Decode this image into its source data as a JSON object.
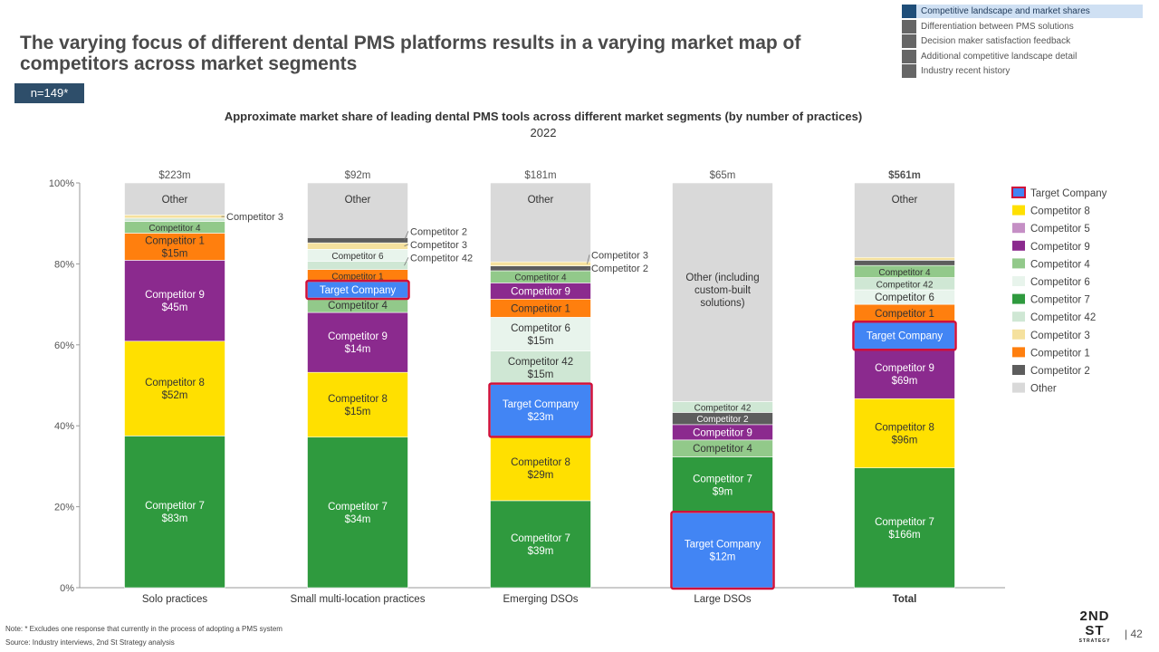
{
  "slide": {
    "title": "The varying focus of different dental PMS platforms results in a varying market map of competitors across market segments",
    "sample": "n=149*",
    "note": "Note: * Excludes one response that currently in the process of adopting a PMS system",
    "source": "Source: Industry interviews, 2nd St Strategy analysis",
    "page_number": "| 42",
    "logo_top": "2ND",
    "logo_mid": "ST",
    "logo_small": "STRATEGY"
  },
  "nav": {
    "items": [
      {
        "label": "Competitive landscape and market shares",
        "active": true
      },
      {
        "label": "Differentiation between PMS solutions",
        "active": false
      },
      {
        "label": "Decision maker satisfaction feedback",
        "active": false
      },
      {
        "label": "Additional competitive landscape detail",
        "active": false
      },
      {
        "label": "Industry recent history",
        "active": false
      }
    ]
  },
  "colors": {
    "Target Company": "#4285f4",
    "Competitor 8": "#ffe000",
    "Competitor 5": "#c58fc5",
    "Competitor 9": "#8b2a8e",
    "Competitor 4": "#92c98a",
    "Competitor 6": "#e8f4ec",
    "Competitor 7": "#2f9a3e",
    "Competitor 42": "#cfe7d4",
    "Competitor 3": "#f5e19e",
    "Competitor 1": "#ff7f0e",
    "Competitor 2": "#5d5d5d",
    "Other": "#d9d9d9",
    "Other (including custom-built solutions)": "#d9d9d9",
    "highlight": "#d0103a"
  },
  "chart_data": {
    "type": "bar",
    "stacked": true,
    "title": "Approximate  market share of leading dental PMS tools across different market segments (by number of practices)",
    "subtitle": "2022",
    "ylim": [
      0,
      100
    ],
    "yticks": [
      "0%",
      "20%",
      "40%",
      "60%",
      "80%",
      "100%"
    ],
    "grid": false,
    "legend_position": "right",
    "legend": [
      "Target Company",
      "Competitor 8",
      "Competitor 5",
      "Competitor 9",
      "Competitor 4",
      "Competitor 6",
      "Competitor 7",
      "Competitor 42",
      "Competitor 3",
      "Competitor 1",
      "Competitor 2",
      "Other"
    ],
    "categories": [
      "Solo practices",
      "Small multi-location practices",
      "Emerging DSOs",
      "Large DSOs",
      "Total"
    ],
    "totals": [
      "$223m",
      "$92m",
      "$181m",
      "$65m",
      "$561m"
    ],
    "stacks": [
      {
        "category": "Solo practices",
        "segments": [
          {
            "name": "Competitor 7",
            "value": 37.5,
            "label": "Competitor 7",
            "amount": "$83m"
          },
          {
            "name": "Competitor 8",
            "value": 23.4,
            "label": "Competitor 8",
            "amount": "$52m"
          },
          {
            "name": "Competitor 9",
            "value": 20.0,
            "label": "Competitor 9",
            "amount": "$45m"
          },
          {
            "name": "Competitor 1",
            "value": 6.7,
            "label": "Competitor 1",
            "amount": "$15m"
          },
          {
            "name": "Competitor 4",
            "value": 2.9,
            "label": "Competitor 4"
          },
          {
            "name": "Competitor 42",
            "value": 0.8
          },
          {
            "name": "Competitor 3",
            "value": 0.8,
            "callout": "Competitor 3"
          },
          {
            "name": "Other",
            "value": 7.9,
            "label": "Other"
          }
        ]
      },
      {
        "category": "Small multi-location practices",
        "segments": [
          {
            "name": "Competitor 7",
            "value": 37.2,
            "label": "Competitor 7",
            "amount": "$34m"
          },
          {
            "name": "Competitor 8",
            "value": 16.0,
            "label": "Competitor 8",
            "amount": "$15m"
          },
          {
            "name": "Competitor 9",
            "value": 14.8,
            "label": "Competitor 9",
            "amount": "$14m"
          },
          {
            "name": "Competitor 4",
            "value": 3.6,
            "label": "Competitor 4"
          },
          {
            "name": "Target Company",
            "value": 4.0,
            "label": "Target Company",
            "highlight": true
          },
          {
            "name": "Competitor 1",
            "value": 3.0,
            "label": "Competitor 1"
          },
          {
            "name": "Competitor 42",
            "value": 2.0,
            "callout": "Competitor 42"
          },
          {
            "name": "Competitor 6",
            "value": 3.0,
            "label": "Competitor 6"
          },
          {
            "name": "Competitor 3",
            "value": 1.6,
            "callout": "Competitor 3"
          },
          {
            "name": "Competitor 2",
            "value": 1.3,
            "callout": "Competitor 2"
          },
          {
            "name": "Other",
            "value": 13.5,
            "label": "Other"
          }
        ]
      },
      {
        "category": "Emerging DSOs",
        "segments": [
          {
            "name": "Competitor 7",
            "value": 21.5,
            "label": "Competitor 7",
            "amount": "$39m"
          },
          {
            "name": "Competitor 8",
            "value": 16.0,
            "label": "Competitor 8",
            "amount": "$29m"
          },
          {
            "name": "Target Company",
            "value": 12.7,
            "label": "Target Company",
            "amount": "$23m",
            "highlight": true
          },
          {
            "name": "Competitor 42",
            "value": 8.3,
            "label": "Competitor 42",
            "amount": "$15m"
          },
          {
            "name": "Competitor 6",
            "value": 8.3,
            "label": "Competitor 6",
            "amount": "$15m"
          },
          {
            "name": "Competitor 1",
            "value": 4.5,
            "label": "Competitor 1"
          },
          {
            "name": "Competitor 9",
            "value": 4.0,
            "label": "Competitor 9"
          },
          {
            "name": "Competitor 4",
            "value": 3.0,
            "label": "Competitor 4"
          },
          {
            "name": "Competitor 2",
            "value": 1.2,
            "callout": "Competitor 2"
          },
          {
            "name": "Competitor 3",
            "value": 1.0,
            "callout": "Competitor 3"
          },
          {
            "name": "Other",
            "value": 19.5,
            "label": "Other"
          }
        ]
      },
      {
        "category": "Large DSOs",
        "segments": [
          {
            "name": "Target Company",
            "value": 18.5,
            "label": "Target Company",
            "amount": "$12m",
            "highlight": true
          },
          {
            "name": "Competitor 7",
            "value": 13.8,
            "label": "Competitor 7",
            "amount": "$9m"
          },
          {
            "name": "Competitor 4",
            "value": 4.2,
            "label": "Competitor 4"
          },
          {
            "name": "Competitor 9",
            "value": 3.8,
            "label": "Competitor 9"
          },
          {
            "name": "Competitor 2",
            "value": 3.0,
            "label": "Competitor 2"
          },
          {
            "name": "Competitor 42",
            "value": 2.7,
            "label": "Competitor 42"
          },
          {
            "name": "Other (including custom-built solutions)",
            "value": 54.0,
            "label": "Other (including custom-built solutions)"
          }
        ]
      },
      {
        "category": "Total",
        "segments": [
          {
            "name": "Competitor 7",
            "value": 29.6,
            "label": "Competitor 7",
            "amount": "$166m"
          },
          {
            "name": "Competitor 8",
            "value": 17.1,
            "label": "Competitor 8",
            "amount": "$96m"
          },
          {
            "name": "Competitor 9",
            "value": 12.3,
            "label": "Competitor 9",
            "amount": "$69m"
          },
          {
            "name": "Target Company",
            "value": 6.5,
            "label": "Target Company",
            "highlight": true
          },
          {
            "name": "Competitor 1",
            "value": 4.5,
            "label": "Competitor 1"
          },
          {
            "name": "Competitor 6",
            "value": 3.6,
            "label": "Competitor 6"
          },
          {
            "name": "Competitor 42",
            "value": 3.0,
            "label": "Competitor 42"
          },
          {
            "name": "Competitor 4",
            "value": 3.0,
            "label": "Competitor 4"
          },
          {
            "name": "Competitor 2",
            "value": 1.3
          },
          {
            "name": "Competitor 3",
            "value": 0.7
          },
          {
            "name": "Other",
            "value": 18.4,
            "label": "Other"
          }
        ]
      }
    ]
  }
}
